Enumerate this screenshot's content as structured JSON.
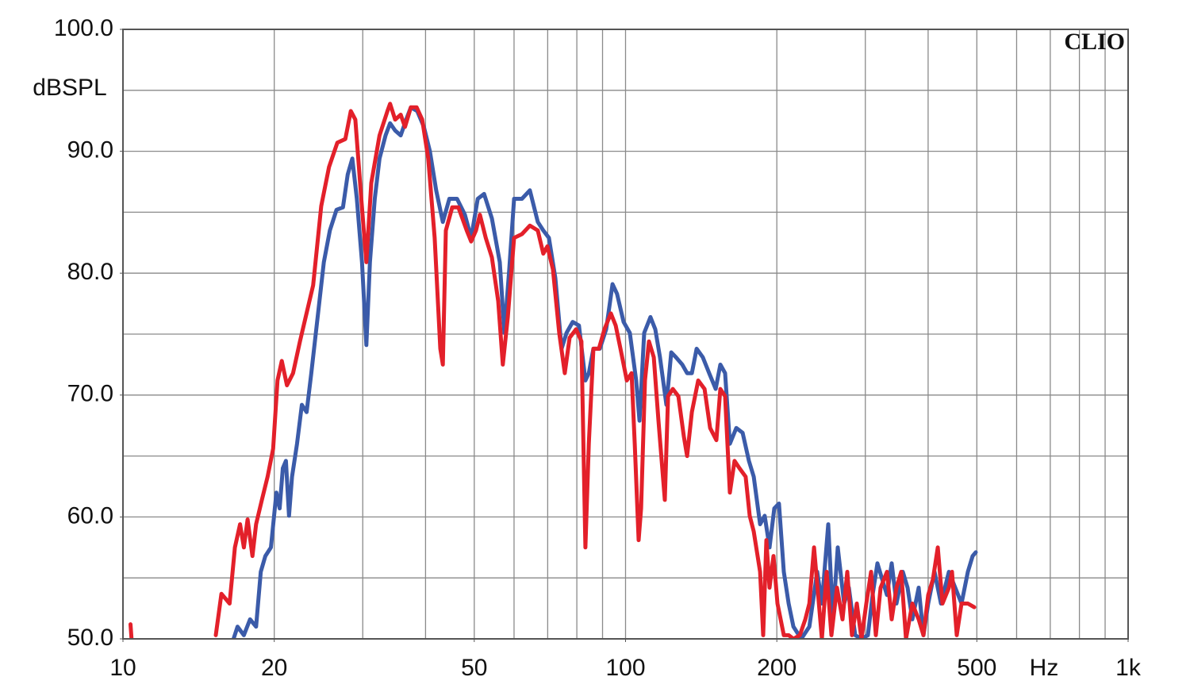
{
  "chart_data": {
    "type": "line",
    "annotation": "CLIO",
    "y_label": "dBSPL",
    "x_label": "Hz",
    "xlog": true,
    "xlim": [
      10,
      1000
    ],
    "ylim": [
      50,
      100
    ],
    "xticks": [
      10,
      20,
      50,
      100,
      200,
      500,
      {
        "value": 1000,
        "label": "1k"
      }
    ],
    "xgrid": [
      20,
      30,
      40,
      50,
      60,
      70,
      80,
      90,
      100,
      200,
      300,
      400,
      500,
      600,
      700,
      800,
      900
    ],
    "yticks": [
      {
        "value": 50,
        "label": "50.0"
      },
      {
        "value": 60,
        "label": "60.0"
      },
      {
        "value": 70,
        "label": "70.0"
      },
      {
        "value": 80,
        "label": "80.0"
      },
      {
        "value": 90,
        "label": "90.0"
      },
      {
        "value": 100,
        "label": "100.0"
      }
    ],
    "ygrid": [
      55,
      60,
      65,
      70,
      75,
      80,
      85,
      90,
      95
    ],
    "series": [
      {
        "color": "#3b5ba9",
        "x": [
          16.6,
          16.9,
          17.4,
          17.9,
          18.4,
          18.8,
          19.2,
          19.7,
          20.2,
          20.5,
          20.8,
          21.1,
          21.4,
          21.7,
          22.2,
          22.7,
          23.2,
          23.7,
          24.4,
          25.1,
          25.8,
          26.6,
          27.4,
          28.0,
          28.6,
          29.2,
          29.9,
          30.5,
          31.0,
          31.7,
          32.4,
          33.3,
          34.0,
          34.8,
          35.7,
          36.6,
          37.4,
          38.5,
          39.7,
          40.8,
          42.0,
          43.3,
          44.6,
          46.2,
          47.9,
          49.3,
          50.8,
          52.3,
          54.2,
          56.2,
          57.4,
          58.7,
          60.0,
          62.2,
          64.5,
          66.9,
          68.6,
          70.4,
          72.5,
          74.6,
          76.3,
          78.5,
          80.8,
          83.2,
          84.5,
          86.3,
          88.9,
          91.5,
          94.2,
          96.2,
          99.1,
          102.0,
          105.0,
          106.6,
          108.9,
          112.1,
          114.6,
          117.1,
          120.6,
          123.3,
          126.0,
          129.7,
          132.6,
          135.5,
          138.5,
          142.5,
          146.7,
          151.1,
          154.4,
          157.8,
          161.3,
          166.1,
          171.0,
          176.0,
          179.9,
          185.2,
          189.2,
          193.4,
          197.7,
          202.0,
          206.5,
          211.1,
          215.8,
          223.7,
          232.1,
          240.6,
          245.9,
          253.1,
          258.6,
          264.4,
          272.2,
          278.2,
          286.4,
          294.8,
          303.6,
          310.1,
          317.1,
          324.0,
          331.2,
          338.5,
          346.0,
          356.2,
          364.1,
          372.1,
          383.1,
          391.5,
          400.2,
          412.0,
          424.2,
          439.9,
          452.9,
          466.1,
          479.8,
          490.4,
          497.6
        ],
        "values": [
          50.0,
          51.0,
          50.3,
          51.6,
          51.0,
          55.5,
          56.8,
          57.5,
          62.0,
          60.7,
          64.0,
          64.6,
          60.1,
          63.3,
          66.0,
          69.2,
          68.6,
          71.8,
          76.4,
          80.9,
          83.5,
          85.2,
          85.4,
          88.1,
          89.4,
          86.1,
          80.9,
          74.1,
          80.9,
          86.1,
          89.4,
          91.3,
          92.3,
          91.7,
          91.3,
          92.6,
          93.6,
          93.3,
          92.0,
          90.0,
          86.8,
          84.2,
          86.1,
          86.1,
          84.8,
          82.9,
          86.1,
          86.5,
          84.5,
          80.9,
          75.1,
          80.3,
          86.1,
          86.1,
          86.8,
          84.2,
          83.5,
          82.9,
          79.6,
          73.8,
          75.1,
          76.0,
          75.7,
          71.2,
          71.8,
          73.8,
          73.8,
          75.4,
          79.1,
          78.3,
          76.0,
          75.1,
          71.2,
          67.9,
          75.1,
          76.4,
          75.4,
          73.1,
          69.2,
          73.5,
          73.1,
          72.5,
          71.8,
          71.8,
          73.8,
          73.1,
          71.8,
          70.5,
          72.5,
          71.8,
          66.0,
          67.3,
          66.9,
          64.6,
          63.3,
          59.4,
          60.1,
          57.5,
          60.7,
          61.1,
          55.5,
          52.9,
          51.0,
          50.0,
          51.0,
          55.5,
          52.9,
          59.4,
          51.6,
          57.5,
          52.9,
          54.2,
          50.3,
          50.0,
          50.3,
          53.6,
          56.2,
          54.9,
          53.6,
          56.2,
          52.9,
          55.5,
          54.2,
          51.6,
          54.2,
          50.3,
          52.9,
          55.5,
          52.9,
          55.5,
          54.2,
          52.9,
          55.5,
          56.8,
          57.1
        ]
      },
      {
        "color": "#e3202a",
        "x": [
          10.35,
          10.4,
          10.5,
          15.3,
          15.7,
          16.3,
          16.7,
          17.1,
          17.4,
          17.7,
          18.1,
          18.4,
          18.9,
          19.4,
          19.9,
          20.3,
          20.7,
          21.2,
          21.8,
          22.5,
          23.1,
          23.9,
          24.8,
          25.7,
          26.7,
          27.7,
          28.4,
          29.0,
          29.8,
          30.5,
          31.2,
          32.4,
          33.6,
          34.0,
          34.8,
          35.7,
          36.4,
          37.4,
          38.4,
          39.4,
          40.5,
          41.7,
          42.8,
          43.3,
          43.9,
          45.2,
          46.5,
          48.3,
          49.3,
          50.4,
          51.3,
          52.7,
          54.2,
          55.8,
          57.0,
          58.3,
          60.0,
          62.2,
          64.5,
          66.9,
          68.6,
          69.9,
          71.7,
          73.8,
          75.7,
          77.4,
          79.7,
          81.7,
          83.2,
          84.5,
          86.3,
          88.5,
          90.8,
          93.5,
          95.6,
          97.7,
          100.6,
          102.8,
          104.3,
          106.2,
          107.4,
          109.3,
          111.3,
          113.8,
          116.3,
          119.7,
          121.5,
          124.2,
          127.4,
          130.6,
          132.6,
          135.5,
          139.5,
          143.6,
          147.3,
          151.6,
          154.4,
          157.8,
          161.3,
          164.8,
          168.5,
          173.4,
          176.6,
          179.9,
          185.2,
          187.9,
          190.6,
          193.4,
          197.0,
          200.6,
          206.5,
          211.1,
          215.8,
          222.2,
          227.9,
          232.1,
          237.2,
          242.5,
          245.9,
          251.3,
          256.8,
          263.4,
          270.2,
          276.2,
          282.2,
          288.5,
          294.8,
          301.4,
          308.0,
          314.8,
          321.7,
          331.2,
          338.5,
          346.0,
          353.6,
          361.4,
          372.1,
          383.1,
          391.5,
          400.2,
          409.0,
          418.1,
          427.2,
          439.9,
          446.3,
          456.1,
          466.1,
          479.8,
          494.0
        ],
        "values": [
          51.2,
          50.0,
          null,
          50.3,
          53.7,
          52.9,
          57.5,
          59.4,
          57.5,
          59.8,
          56.8,
          59.4,
          61.4,
          63.3,
          65.6,
          71.2,
          72.8,
          70.8,
          71.8,
          74.4,
          76.4,
          79.0,
          85.5,
          88.7,
          90.7,
          91.0,
          93.3,
          92.6,
          86.1,
          80.9,
          87.4,
          91.3,
          93.3,
          93.9,
          92.6,
          93.0,
          92.0,
          93.6,
          93.6,
          92.6,
          89.4,
          82.9,
          73.8,
          72.5,
          83.5,
          85.4,
          85.4,
          83.5,
          82.6,
          83.5,
          84.8,
          82.9,
          81.3,
          77.7,
          72.5,
          76.4,
          82.9,
          83.2,
          83.9,
          83.5,
          81.6,
          82.2,
          80.3,
          75.1,
          71.8,
          74.7,
          75.4,
          74.4,
          57.5,
          66.0,
          73.8,
          73.8,
          75.4,
          76.7,
          75.7,
          73.8,
          71.2,
          71.8,
          66.0,
          58.1,
          60.7,
          71.2,
          74.4,
          73.1,
          67.9,
          61.4,
          69.9,
          70.5,
          69.9,
          66.6,
          65.0,
          68.6,
          71.2,
          70.5,
          67.3,
          66.3,
          70.5,
          69.9,
          62.0,
          64.6,
          64.0,
          63.3,
          60.1,
          58.8,
          55.5,
          50.3,
          58.1,
          54.2,
          56.8,
          52.9,
          50.3,
          50.3,
          50.0,
          50.3,
          51.6,
          52.9,
          57.5,
          52.9,
          50.0,
          55.5,
          50.3,
          54.2,
          51.6,
          55.5,
          50.3,
          52.9,
          50.0,
          52.9,
          55.5,
          50.3,
          54.2,
          55.5,
          51.6,
          54.2,
          55.5,
          50.0,
          52.9,
          51.6,
          50.3,
          53.6,
          54.9,
          57.5,
          52.9,
          54.2,
          55.5,
          50.3,
          52.9,
          52.9,
          52.6
        ]
      }
    ]
  }
}
